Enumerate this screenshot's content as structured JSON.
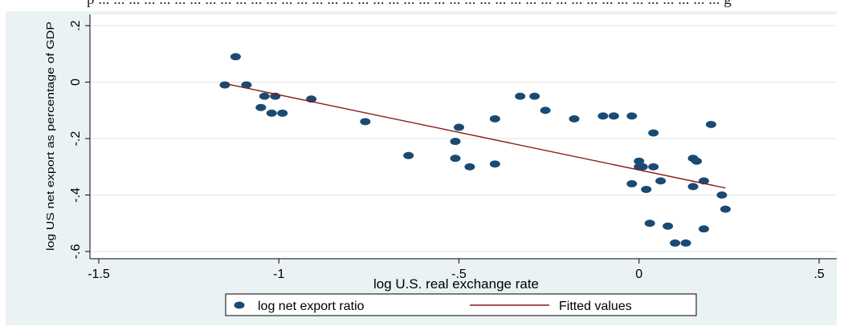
{
  "top_text": "p ... ... ... ... ... ... ... ... ... ... ... ... ... ... ... ... ... ... ... ... ... ... ... ... ... ... ... ... ... ... ... ... ... ... ... ... ... ... ... ... ... g",
  "colors": {
    "background": "#eaf2f3",
    "plot_area": "#ffffff",
    "grid": "#e1e9ea",
    "point": "#1a4a72",
    "fit_line": "#8b1a1a"
  },
  "chart_data": {
    "type": "scatter",
    "xlabel": "log U.S. real exchange rate",
    "ylabel": "log US net export as percentage of GDP",
    "xlim": [
      -1.5,
      0.5
    ],
    "ylim": [
      -0.6,
      0.2
    ],
    "x_ticks": [
      -1.5,
      -1,
      -0.5,
      0,
      0.5
    ],
    "x_tick_labels": [
      "-1.5",
      "-1",
      "-.5",
      "0",
      ".5"
    ],
    "y_ticks": [
      -0.6,
      -0.4,
      -0.2,
      0,
      0.2
    ],
    "y_tick_labels": [
      "-.6",
      "-.4",
      "-.2",
      "0",
      ".2"
    ],
    "grid": true,
    "legend_position": "bottom-center",
    "series": [
      {
        "name": "log net export ratio",
        "kind": "scatter",
        "x": [
          -1.15,
          -1.12,
          -1.09,
          -1.05,
          -1.04,
          -1.02,
          -1.01,
          -0.99,
          -0.91,
          -0.76,
          -0.64,
          -0.51,
          -0.51,
          -0.5,
          -0.47,
          -0.4,
          -0.4,
          -0.33,
          -0.29,
          -0.26,
          -0.18,
          -0.1,
          -0.07,
          -0.02,
          -0.02,
          0.0,
          0.0,
          0.01,
          0.02,
          0.03,
          0.04,
          0.04,
          0.06,
          0.08,
          0.1,
          0.13,
          0.15,
          0.15,
          0.16,
          0.18,
          0.18,
          0.2,
          0.23,
          0.24
        ],
        "y": [
          -0.01,
          0.09,
          -0.01,
          -0.09,
          -0.05,
          -0.11,
          -0.05,
          -0.11,
          -0.06,
          -0.14,
          -0.26,
          -0.27,
          -0.21,
          -0.16,
          -0.3,
          -0.29,
          -0.13,
          -0.05,
          -0.05,
          -0.1,
          -0.13,
          -0.12,
          -0.12,
          -0.12,
          -0.36,
          -0.3,
          -0.28,
          -0.3,
          -0.38,
          -0.5,
          -0.3,
          -0.18,
          -0.35,
          -0.51,
          -0.57,
          -0.57,
          -0.27,
          -0.37,
          -0.28,
          -0.35,
          -0.52,
          -0.15,
          -0.4,
          -0.45
        ]
      },
      {
        "name": "Fitted values",
        "kind": "line",
        "x": [
          -1.15,
          0.24
        ],
        "y": [
          -0.005,
          -0.375
        ]
      }
    ]
  }
}
